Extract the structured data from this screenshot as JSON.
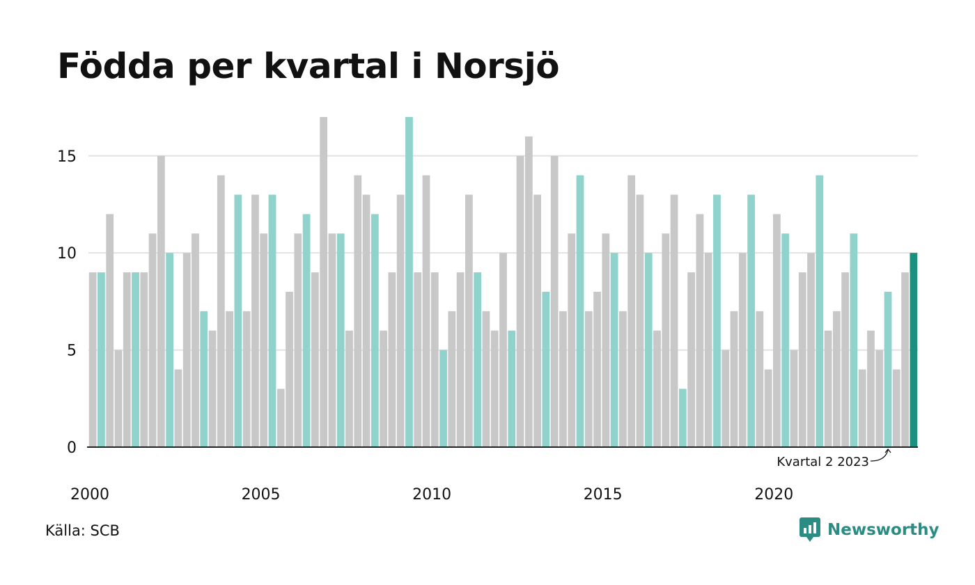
{
  "title": "Födda per kvartal i Norsjö",
  "source": "Källa: SCB",
  "brand": {
    "name": "Newsworthy",
    "icon": "newsworthy-logo-icon"
  },
  "colors": {
    "bar_default": "#c8c8c8",
    "bar_q2": "#8fd3cc",
    "bar_latest": "#1a9080",
    "grid": "#e2e2e2",
    "axis": "#222222",
    "brand": "#2a8c82"
  },
  "chart_data": {
    "type": "bar",
    "start": "2000 Q1",
    "frequency": "quarterly",
    "values": [
      9,
      9,
      12,
      5,
      9,
      9,
      9,
      11,
      15,
      10,
      4,
      10,
      11,
      7,
      6,
      14,
      7,
      13,
      7,
      13,
      11,
      13,
      3,
      8,
      11,
      12,
      9,
      17,
      11,
      11,
      6,
      14,
      13,
      12,
      6,
      9,
      13,
      17,
      9,
      14,
      9,
      5,
      7,
      9,
      13,
      9,
      7,
      6,
      10,
      6,
      15,
      16,
      13,
      8,
      15,
      7,
      11,
      14,
      7,
      8,
      11,
      10,
      7,
      14,
      13,
      10,
      6,
      11,
      13,
      3,
      9,
      12,
      10,
      13,
      5,
      7,
      10,
      13,
      7,
      4,
      12,
      11,
      5,
      9,
      10,
      14,
      6,
      7,
      9,
      11,
      4,
      6,
      5,
      8,
      4,
      9,
      10
    ],
    "highlight_quarter": 2,
    "x_tick_labels": [
      "2000",
      "2005",
      "2010",
      "2015",
      "2020"
    ],
    "y_ticks": [
      0,
      5,
      10,
      15
    ],
    "ylim": [
      0,
      17
    ],
    "grid": true,
    "annotation": {
      "text": "Kvartal 2 2023",
      "index": 93
    }
  }
}
